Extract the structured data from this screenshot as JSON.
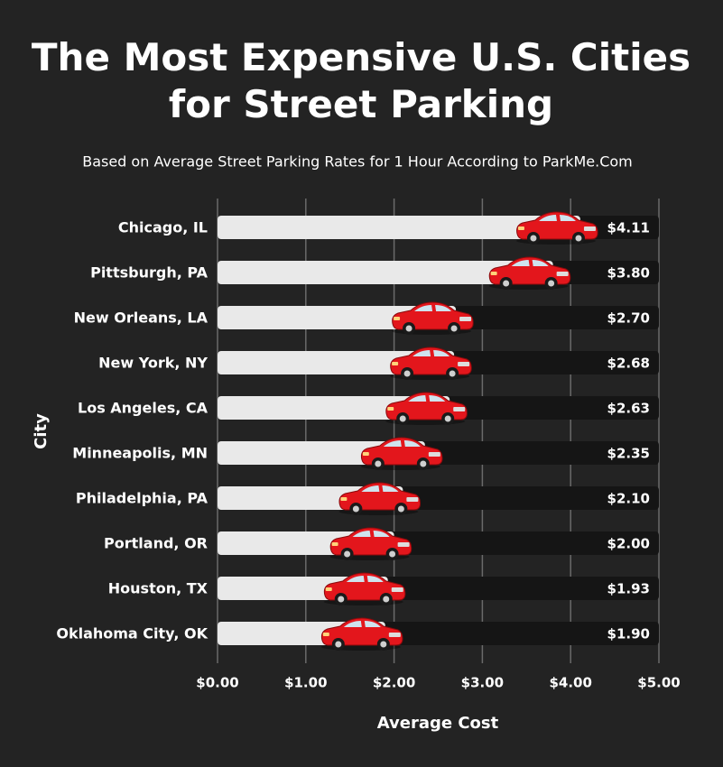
{
  "chart_data": {
    "type": "bar",
    "orientation": "horizontal",
    "title": "The Most Expensive U.S. Cities for Street Parking",
    "subtitle": "Based on Average Street Parking Rates for 1 Hour According to ParkMe.Com",
    "x_label": "Average Cost",
    "y_label": "City",
    "categories": [
      "Chicago, IL",
      "Pittsburgh, PA",
      "New Orleans, LA",
      "New York, NY",
      "Los Angeles, CA",
      "Minneapolis, MN",
      "Philadelphia, PA",
      "Portland, OR",
      "Houston, TX",
      "Oklahoma City, OK"
    ],
    "values": [
      4.11,
      3.8,
      2.7,
      2.68,
      2.63,
      2.35,
      2.1,
      2.0,
      1.93,
      1.9
    ],
    "value_labels": [
      "$4.11",
      "$3.80",
      "$2.70",
      "$2.68",
      "$2.63",
      "$2.35",
      "$2.10",
      "$2.00",
      "$1.93",
      "$1.90"
    ],
    "color": "#e9e9e9",
    "xlim": [
      0,
      5
    ],
    "xticks": [
      {
        "value": 0,
        "label": "$0.00"
      },
      {
        "value": 1,
        "label": "$1.00"
      },
      {
        "value": 2,
        "label": "$2.00"
      },
      {
        "value": 3,
        "label": "$3.00"
      },
      {
        "value": 4,
        "label": "$4.00"
      },
      {
        "value": 5,
        "label": "$5.00"
      }
    ],
    "grid": true
  }
}
